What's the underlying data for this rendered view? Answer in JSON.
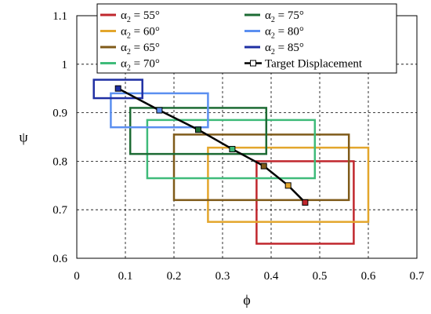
{
  "chart_data": {
    "type": "line",
    "title": "",
    "xlabel": "ϕ",
    "ylabel": "ψ",
    "xlim": [
      0,
      0.7
    ],
    "ylim": [
      0.6,
      1.1
    ],
    "xticks": [
      "0",
      "0.1",
      "0.2",
      "0.3",
      "0.4",
      "0.5",
      "0.6",
      "0.7"
    ],
    "yticks": [
      "0.6",
      "0.7",
      "0.8",
      "0.9",
      "1",
      "1.1"
    ],
    "grid": true,
    "legend_position": "top",
    "series": [
      {
        "name": "α₂ = 55°",
        "legend_main": "α",
        "legend_sub": "2",
        "legend_rest": " = 55°",
        "color": "#c0272d",
        "box": {
          "x": [
            0.37,
            0.57
          ],
          "y": [
            0.63,
            0.8
          ]
        }
      },
      {
        "name": "α₂ = 60°",
        "legend_main": "α",
        "legend_sub": "2",
        "legend_rest": " = 60°",
        "color": "#e3a62c",
        "box": {
          "x": [
            0.27,
            0.6
          ],
          "y": [
            0.675,
            0.828
          ]
        }
      },
      {
        "name": "α₂ = 65°",
        "legend_main": "α",
        "legend_sub": "2",
        "legend_rest": " = 65°",
        "color": "#7f5a19",
        "box": {
          "x": [
            0.2,
            0.56
          ],
          "y": [
            0.72,
            0.855
          ]
        }
      },
      {
        "name": "α₂ = 70°",
        "legend_main": "α",
        "legend_sub": "2",
        "legend_rest": " = 70°",
        "color": "#3fbb7a",
        "box": {
          "x": [
            0.145,
            0.49
          ],
          "y": [
            0.765,
            0.885
          ]
        }
      },
      {
        "name": "α₂ = 75°",
        "legend_main": "α",
        "legend_sub": "2",
        "legend_rest": " = 75°",
        "color": "#1d6b34",
        "box": {
          "x": [
            0.11,
            0.39
          ],
          "y": [
            0.815,
            0.91
          ]
        }
      },
      {
        "name": "α₂ = 80°",
        "legend_main": "α",
        "legend_sub": "2",
        "legend_rest": " = 80°",
        "color": "#5b8ff0",
        "box": {
          "x": [
            0.07,
            0.27
          ],
          "y": [
            0.87,
            0.94
          ]
        }
      },
      {
        "name": "α₂ = 85°",
        "legend_main": "α",
        "legend_sub": "2",
        "legend_rest": " = 85°",
        "color": "#1f2fa3",
        "box": {
          "x": [
            0.035,
            0.135
          ],
          "y": [
            0.93,
            0.968
          ]
        }
      }
    ],
    "target": {
      "name": "Target Displacement",
      "x": [
        0.47,
        0.435,
        0.385,
        0.32,
        0.25,
        0.17,
        0.085
      ],
      "y": [
        0.715,
        0.75,
        0.79,
        0.825,
        0.865,
        0.905,
        0.95
      ]
    }
  }
}
